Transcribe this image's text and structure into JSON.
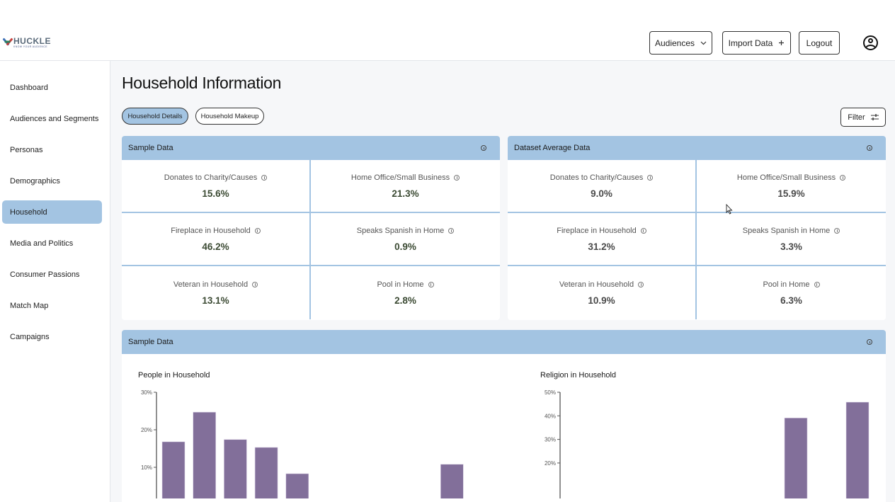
{
  "header": {
    "logo": {
      "name": "HUCKLE",
      "tagline": "KNOW YOUR AUDIENCE"
    },
    "buttons": {
      "audiences": "Audiences",
      "import_data": "Import Data",
      "logout": "Logout"
    },
    "icons": {
      "audiences": "chevron-down-icon",
      "import_data": "plus-icon",
      "profile": "user-circle-icon"
    }
  },
  "sidebar": {
    "items": [
      {
        "label": "Dashboard",
        "active": false
      },
      {
        "label": "Audiences and Segments",
        "active": false
      },
      {
        "label": "Personas",
        "active": false
      },
      {
        "label": "Demographics",
        "active": false
      },
      {
        "label": "Household",
        "active": true
      },
      {
        "label": "Media and Politics",
        "active": false
      },
      {
        "label": "Consumer Passions",
        "active": false
      },
      {
        "label": "Match Map",
        "active": false
      },
      {
        "label": "Campaigns",
        "active": false
      }
    ],
    "active_color": "#a3c4e2"
  },
  "main": {
    "title": "Household Information",
    "tabs": [
      {
        "label": "Household Details",
        "active": true
      },
      {
        "label": "Household Makeup",
        "active": false
      }
    ],
    "filter_label": "Filter",
    "sample_panel": {
      "title": "Sample Data",
      "stats": [
        {
          "label": "Donates to Charity/Causes",
          "value": "15.6%"
        },
        {
          "label": "Home Office/Small Business",
          "value": "21.3%"
        },
        {
          "label": "Fireplace in Household",
          "value": "46.2%"
        },
        {
          "label": "Speaks Spanish in Home",
          "value": "0.9%"
        },
        {
          "label": "Veteran in Household",
          "value": "13.1%"
        },
        {
          "label": "Pool in Home",
          "value": "2.8%"
        }
      ]
    },
    "average_panel": {
      "title": "Dataset Average Data",
      "stats": [
        {
          "label": "Donates to Charity/Causes",
          "value": "9.0%"
        },
        {
          "label": "Home Office/Small Business",
          "value": "15.9%"
        },
        {
          "label": "Fireplace in Household",
          "value": "31.2%"
        },
        {
          "label": "Speaks Spanish in Home",
          "value": "3.3%"
        },
        {
          "label": "Veteran in Household",
          "value": "10.9%"
        },
        {
          "label": "Pool in Home",
          "value": "6.3%"
        }
      ]
    },
    "charts_panel": {
      "title": "Sample Data"
    }
  },
  "chart_data": [
    {
      "type": "bar",
      "title": "People in Household",
      "ylabel": "",
      "yticks": [
        "10%",
        "20%",
        "30%"
      ],
      "ylim": [
        0,
        30
      ],
      "bar_color": "#826f9a",
      "values": [
        16.8,
        24.7,
        17.4,
        15.3,
        8.3,
        0,
        0,
        0,
        0,
        10.8
      ]
    },
    {
      "type": "bar",
      "title": "Religion in Household",
      "ylabel": "",
      "yticks": [
        "20%",
        "30%",
        "40%",
        "50%"
      ],
      "ylim": [
        0,
        50
      ],
      "bar_color": "#826f9a",
      "values": [
        0,
        0,
        0,
        39.1,
        45.8
      ]
    }
  ]
}
